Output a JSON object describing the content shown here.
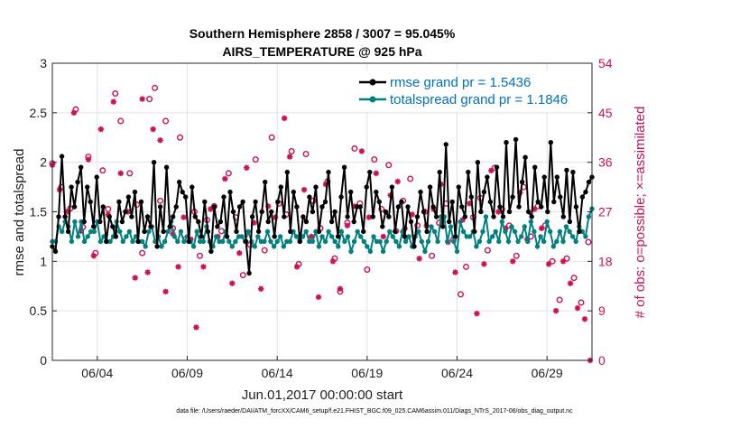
{
  "chart_data": {
    "type": "line",
    "title_line1": "Southern Hemisphere 2858 / 3007 = 95.045%",
    "title_line2": "AIRS_TEMPERATURE @ 925 hPa",
    "xlabel": "Jun.01,2017 00:00:00 start",
    "ylabel_left": "rmse and totalspread",
    "ylabel_right": "# of obs: o=possible; ×=assimilated",
    "footer": "data file: /Users/raeder/DAI/ATM_forcXX/CAM6_setup/f.e21.FHIST_BGC.f09_025.CAM6assim.011/Diags_NTrS_2017-06/obs_diag_output.nc",
    "xlim": [
      1.0,
      31.0
    ],
    "ylim_left": [
      0,
      3
    ],
    "ylim_right": [
      0,
      54
    ],
    "x_ticks": [
      3.5,
      8.5,
      13.5,
      18.5,
      23.5,
      28.5
    ],
    "x_tick_labels": [
      "06/04",
      "06/09",
      "06/14",
      "06/19",
      "06/24",
      "06/29"
    ],
    "y_ticks_left": [
      0,
      0.5,
      1,
      1.5,
      2,
      2.5,
      3
    ],
    "y_tick_labels_left": [
      "0",
      "0.5",
      "1",
      "1.5",
      "2",
      "2.5",
      "3"
    ],
    "y_ticks_right": [
      0,
      9,
      18,
      27,
      36,
      45,
      54
    ],
    "y_tick_labels_right": [
      "0",
      "9",
      "18",
      "27",
      "36",
      "45",
      "54"
    ],
    "series": [
      {
        "name": "rmse grand pr = 1.5436",
        "color": "#000000",
        "values": [
          1.15,
          1.1,
          1.45,
          2.06,
          1.45,
          1.3,
          1.75,
          1.55,
          1.8,
          1.95,
          1.4,
          1.75,
          1.6,
          1.35,
          1.85,
          1.4,
          1.55,
          1.2,
          1.45,
          1.35,
          1.25,
          1.6,
          1.4,
          1.5,
          1.65,
          1.45,
          1.7,
          1.2,
          1.6,
          1.3,
          1.45,
          1.35,
          2.0,
          1.15,
          1.55,
          1.3,
          1.95,
          1.35,
          1.45,
          1.55,
          1.8,
          1.7,
          1.65,
          1.2,
          1.75,
          1.45,
          1.4,
          1.25,
          1.6,
          1.3,
          1.1,
          1.55,
          1.35,
          1.4,
          1.65,
          1.25,
          1.7,
          1.5,
          1.3,
          1.55,
          1.6,
          1.2,
          0.88,
          1.45,
          1.6,
          1.3,
          1.5,
          1.8,
          1.4,
          1.5,
          1.25,
          1.6,
          1.75,
          1.45,
          1.9,
          1.3,
          1.7,
          1.55,
          1.2,
          1.45,
          1.4,
          1.65,
          1.5,
          1.75,
          1.3,
          1.55,
          1.6,
          1.9,
          1.4,
          1.5,
          1.25,
          1.65,
          1.95,
          1.45,
          1.7,
          1.4,
          1.55,
          1.55,
          1.3,
          1.75,
          1.9,
          1.45,
          1.7,
          1.6,
          1.35,
          1.5,
          1.45,
          1.75,
          1.3,
          1.55,
          1.6,
          1.25,
          1.55,
          1.4,
          1.15,
          1.45,
          1.7,
          1.5,
          1.3,
          1.75,
          1.55,
          1.45,
          1.9,
          1.35,
          2.18,
          1.4,
          1.6,
          1.25,
          1.75,
          1.55,
          1.45,
          1.9,
          1.65,
          1.3,
          2.0,
          1.5,
          1.7,
          1.85,
          1.6,
          1.45,
          1.95,
          1.55,
          1.45,
          2.2,
          1.5,
          1.65,
          2.23,
          1.55,
          1.8,
          2.05,
          1.5,
          1.45,
          1.95,
          1.6,
          1.55,
          1.85,
          1.5,
          2.2,
          1.6,
          1.85,
          1.65,
          1.45,
          1.92,
          1.4,
          1.9,
          1.55,
          1.3,
          1.65,
          1.7,
          1.8,
          1.85
        ]
      },
      {
        "name": "totalspread grand pr = 1.1846",
        "color": "#008080",
        "values": [
          1.2,
          1.2,
          1.35,
          1.3,
          1.4,
          1.35,
          1.2,
          1.4,
          1.25,
          1.4,
          1.2,
          1.25,
          1.3,
          1.3,
          1.4,
          1.2,
          1.25,
          1.2,
          1.2,
          1.25,
          1.4,
          1.3,
          1.2,
          1.25,
          1.3,
          1.2,
          1.25,
          1.2,
          1.2,
          1.15,
          1.3,
          1.35,
          1.2,
          1.25,
          1.15,
          1.2,
          1.3,
          1.4,
          1.25,
          1.2,
          1.3,
          1.2,
          1.25,
          1.2,
          1.15,
          1.3,
          1.2,
          1.2,
          1.35,
          1.2,
          1.15,
          1.25,
          1.2,
          1.2,
          1.3,
          1.2,
          1.15,
          1.2,
          1.25,
          1.25,
          1.2,
          1.3,
          1.2,
          1.15,
          1.25,
          1.2,
          1.2,
          1.3,
          1.2,
          1.15,
          1.2,
          1.25,
          1.15,
          1.2,
          1.2,
          1.3,
          1.25,
          1.2,
          1.25,
          1.3,
          1.2,
          1.2,
          1.3,
          1.15,
          1.25,
          1.2,
          1.3,
          1.25,
          1.2,
          1.15,
          1.3,
          1.2,
          1.25,
          1.1,
          1.2,
          1.3,
          1.25,
          1.2,
          1.15,
          1.1,
          1.25,
          1.2,
          1.2,
          1.1,
          1.2,
          1.3,
          1.25,
          1.2,
          1.15,
          1.3,
          1.2,
          1.25,
          1.15,
          1.25,
          1.3,
          1.2,
          1.1,
          1.2,
          1.35,
          1.3,
          1.2,
          1.45,
          1.45,
          1.2,
          1.35,
          1.2,
          1.1,
          1.4,
          1.3,
          1.25,
          1.25,
          1.3,
          1.15,
          1.2,
          1.3,
          1.45,
          1.2,
          1.25,
          1.3,
          1.2,
          1.4,
          1.3,
          1.2,
          1.35,
          1.3,
          1.2,
          1.25,
          1.35,
          1.2,
          1.4,
          1.3,
          1.15,
          1.25,
          1.2,
          1.4,
          1.3,
          1.15,
          1.2,
          1.3,
          1.2,
          1.35,
          1.3,
          1.25,
          1.2,
          1.35,
          1.3,
          1.25,
          1.45,
          1.53
        ]
      }
    ],
    "obs_possible": [
      [
        1.0,
        35.8
      ],
      [
        1.5,
        31.5
      ],
      [
        2.0,
        27.6
      ],
      [
        2.3,
        45.6
      ],
      [
        2.7,
        24.2
      ],
      [
        3.0,
        37.0
      ],
      [
        3.4,
        19.5
      ],
      [
        3.8,
        34.5
      ],
      [
        4.1,
        27.5
      ],
      [
        4.5,
        48.5
      ],
      [
        4.8,
        43.5
      ],
      [
        5.3,
        34.0
      ],
      [
        5.7,
        28.3
      ],
      [
        6.0,
        19.5
      ],
      [
        6.4,
        47.5
      ],
      [
        6.7,
        49.5
      ],
      [
        7.0,
        29.0
      ],
      [
        7.3,
        43.5
      ],
      [
        7.7,
        24.0
      ],
      [
        8.1,
        40.5
      ],
      [
        8.4,
        22.0
      ],
      [
        8.9,
        27.0
      ],
      [
        9.2,
        19.0
      ],
      [
        9.6,
        25.5
      ],
      [
        10.0,
        28.0
      ],
      [
        10.4,
        23.5
      ],
      [
        10.8,
        34.0
      ],
      [
        11.2,
        26.0
      ],
      [
        11.6,
        15.5
      ],
      [
        12.0,
        21.0
      ],
      [
        12.3,
        36.5
      ],
      [
        12.8,
        20.0
      ],
      [
        13.2,
        40.5
      ],
      [
        13.6,
        28.5
      ],
      [
        14.0,
        26.5
      ],
      [
        14.3,
        38.0
      ],
      [
        14.7,
        17.5
      ],
      [
        15.1,
        37.5
      ],
      [
        15.5,
        29.0
      ],
      [
        15.9,
        24.0
      ],
      [
        16.3,
        32.5
      ],
      [
        16.7,
        18.5
      ],
      [
        17.0,
        12.5
      ],
      [
        17.4,
        25.0
      ],
      [
        17.8,
        38.5
      ],
      [
        18.1,
        28.5
      ],
      [
        18.5,
        16.5
      ],
      [
        18.9,
        36.5
      ],
      [
        19.3,
        27.5
      ],
      [
        19.7,
        35.5
      ],
      [
        20.1,
        23.5
      ],
      [
        20.5,
        29.0
      ],
      [
        20.9,
        33.0
      ],
      [
        21.3,
        24.5
      ],
      [
        21.7,
        27.0
      ],
      [
        22.1,
        19.0
      ],
      [
        22.5,
        25.0
      ],
      [
        22.9,
        28.5
      ],
      [
        23.3,
        22.0
      ],
      [
        23.7,
        12.0
      ],
      [
        24.0,
        17.0
      ],
      [
        24.4,
        26.0
      ],
      [
        24.8,
        29.5
      ],
      [
        25.2,
        20.0
      ],
      [
        25.6,
        35.0
      ],
      [
        26.0,
        27.5
      ],
      [
        26.4,
        24.5
      ],
      [
        26.8,
        19.0
      ],
      [
        27.2,
        31.5
      ],
      [
        27.6,
        22.5
      ],
      [
        28.0,
        28.0
      ],
      [
        28.4,
        24.5
      ],
      [
        28.8,
        18.0
      ],
      [
        29.2,
        11.0
      ],
      [
        29.6,
        18.5
      ],
      [
        30.0,
        15.0
      ],
      [
        30.4,
        10.5
      ],
      [
        30.8,
        21.5
      ]
    ],
    "obs_assimilated": [
      [
        1.0,
        35.5
      ],
      [
        1.4,
        31.0
      ],
      [
        1.8,
        27.0
      ],
      [
        2.2,
        45.0
      ],
      [
        2.6,
        23.5
      ],
      [
        3.0,
        36.5
      ],
      [
        3.3,
        19.0
      ],
      [
        3.7,
        42.0
      ],
      [
        4.1,
        26.5
      ],
      [
        4.4,
        47.0
      ],
      [
        4.8,
        34.0
      ],
      [
        5.2,
        27.0
      ],
      [
        5.6,
        15.0
      ],
      [
        6.0,
        47.5
      ],
      [
        6.3,
        16.0
      ],
      [
        6.6,
        42.0
      ],
      [
        7.0,
        40.0
      ],
      [
        7.3,
        12.5
      ],
      [
        7.7,
        23.0
      ],
      [
        8.0,
        17.0
      ],
      [
        8.3,
        26.0
      ],
      [
        8.7,
        22.0
      ],
      [
        9.0,
        6.0
      ],
      [
        9.4,
        17.0
      ],
      [
        9.8,
        27.5
      ],
      [
        10.2,
        22.5
      ],
      [
        10.6,
        33.0
      ],
      [
        11.0,
        14.0
      ],
      [
        11.4,
        19.5
      ],
      [
        11.8,
        35.0
      ],
      [
        12.2,
        25.0
      ],
      [
        12.6,
        13.0
      ],
      [
        13.0,
        28.0
      ],
      [
        13.4,
        26.0
      ],
      [
        13.9,
        44.0
      ],
      [
        14.2,
        37.0
      ],
      [
        14.6,
        17.0
      ],
      [
        15.0,
        31.0
      ],
      [
        15.4,
        22.5
      ],
      [
        15.8,
        11.5
      ],
      [
        16.2,
        32.0
      ],
      [
        16.6,
        18.0
      ],
      [
        17.0,
        13.0
      ],
      [
        17.4,
        24.5
      ],
      [
        17.8,
        28.0
      ],
      [
        18.2,
        38.0
      ],
      [
        18.6,
        26.0
      ],
      [
        19.0,
        34.0
      ],
      [
        19.4,
        22.5
      ],
      [
        19.8,
        30.0
      ],
      [
        20.2,
        32.5
      ],
      [
        20.6,
        24.0
      ],
      [
        21.0,
        26.5
      ],
      [
        21.4,
        18.5
      ],
      [
        21.8,
        24.5
      ],
      [
        22.2,
        27.5
      ],
      [
        22.6,
        32.0
      ],
      [
        23.0,
        21.5
      ],
      [
        23.4,
        16.0
      ],
      [
        23.8,
        25.5
      ],
      [
        24.2,
        28.5
      ],
      [
        24.6,
        8.5
      ],
      [
        25.0,
        17.5
      ],
      [
        25.4,
        34.5
      ],
      [
        25.8,
        27.0
      ],
      [
        26.2,
        24.0
      ],
      [
        26.6,
        18.0
      ],
      [
        27.0,
        30.5
      ],
      [
        27.4,
        22.0
      ],
      [
        27.8,
        27.5
      ],
      [
        28.2,
        24.0
      ],
      [
        28.6,
        17.5
      ],
      [
        29.0,
        9.0
      ],
      [
        29.4,
        18.0
      ],
      [
        29.8,
        14.0
      ],
      [
        30.2,
        9.5
      ],
      [
        30.6,
        7.5
      ],
      [
        30.9,
        0.0
      ]
    ],
    "legend_position": "top-right",
    "colors": {
      "rmse": "#000000",
      "spread": "#008080",
      "obs": "#cc1155"
    }
  }
}
